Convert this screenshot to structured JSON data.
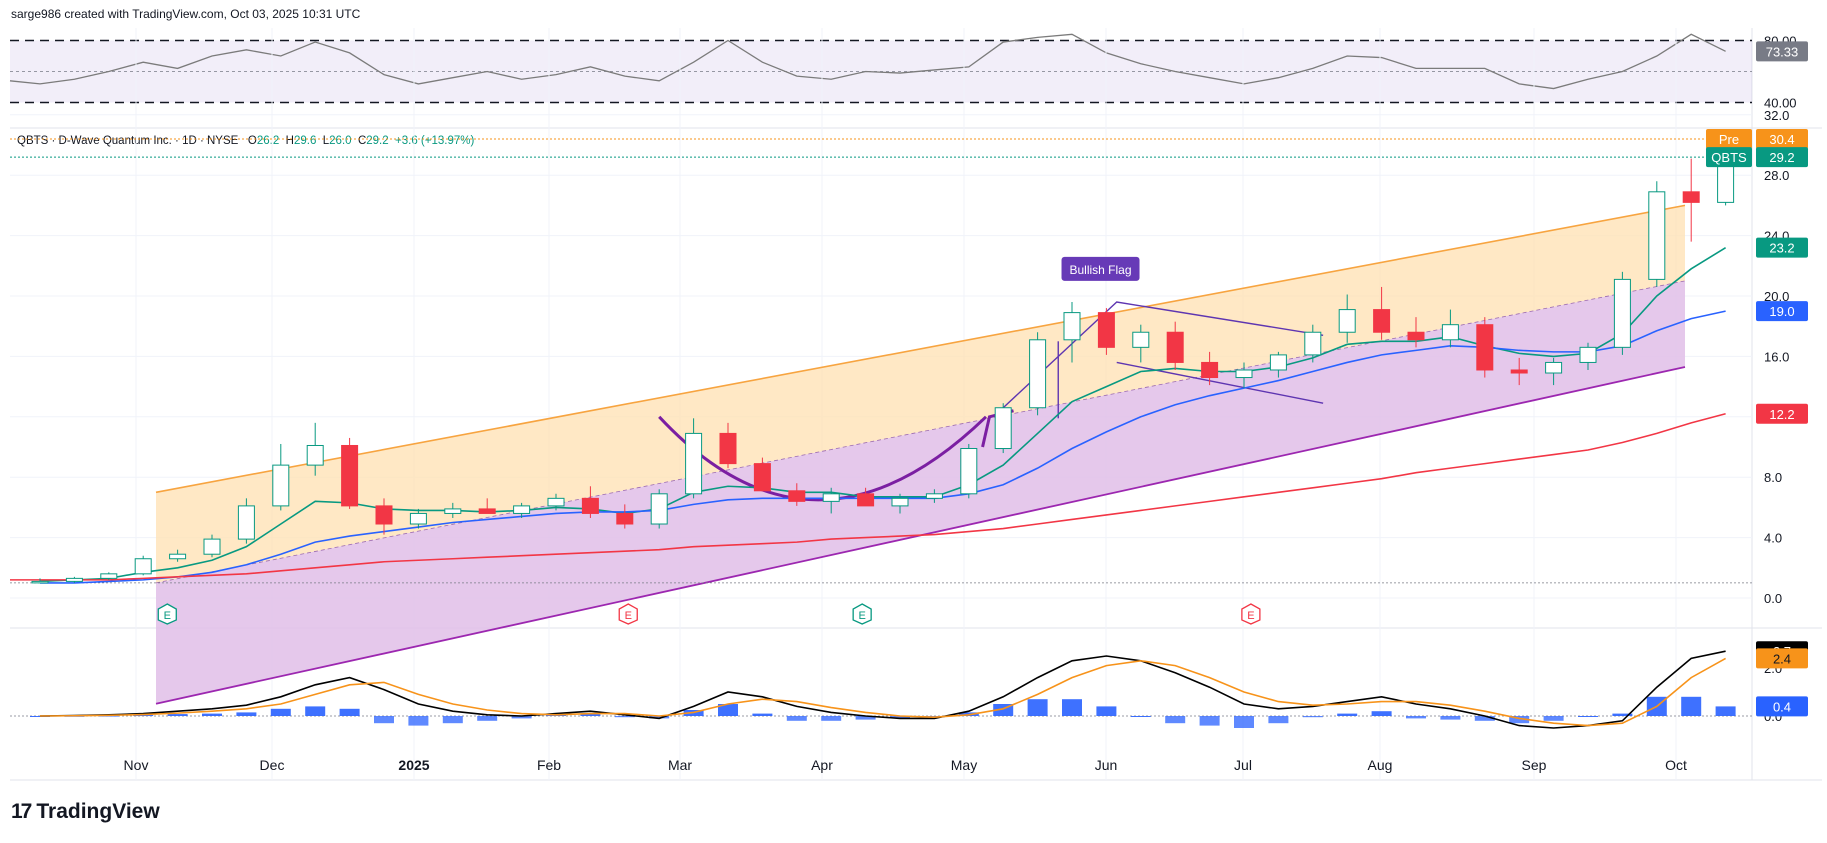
{
  "header": {
    "credit": "sarge986 created with TradingView.com, Oct 03, 2025 10:31 UTC"
  },
  "legend": {
    "symbol": "QBTS · D-Wave Quantum Inc. · 1D · NYSE",
    "open_label": "O",
    "open": "26.2",
    "high_label": "H",
    "high": "29.6",
    "low_label": "L",
    "low": "26.0",
    "close_label": "C",
    "close": "29.2",
    "change": "+3.6 (+13.97%)"
  },
  "brand": {
    "name": "TradingView",
    "mark": "17"
  },
  "colors": {
    "up": "#089981",
    "down": "#f23645",
    "channel_upper": "#f7a440",
    "channel_lower": "#9c27b0",
    "ema_fast": "#089981",
    "ema_mid": "#2962ff",
    "ema_slow": "#f23645",
    "macd": "#000000",
    "signal": "#f7931a",
    "hist": "#2962ff",
    "rsi_line": "#7b7b7b"
  },
  "chart_data": [
    {
      "type": "line",
      "title": "RSI",
      "y_ticks": [
        "80.00",
        "40.00"
      ],
      "overbought": 80,
      "oversold": 40,
      "last_value_label": "73.33",
      "x": [
        "Oct 25",
        "Nov 1",
        "Nov 8",
        "Nov 15",
        "Nov 22",
        "Nov 29",
        "Dec 6",
        "Dec 13",
        "Dec 20",
        "Dec 27",
        "Jan 3",
        "Jan 10",
        "Jan 17",
        "Jan 24",
        "Jan 31",
        "Feb 7",
        "Feb 14",
        "Feb 21",
        "Feb 28",
        "Mar 7",
        "Mar 14",
        "Mar 21",
        "Mar 28",
        "Apr 4",
        "Apr 11",
        "Apr 18",
        "Apr 25",
        "May 2",
        "May 9",
        "May 16",
        "May 23",
        "May 30",
        "Jun 6",
        "Jun 13",
        "Jun 20",
        "Jun 27",
        "Jul 4",
        "Jul 11",
        "Jul 18",
        "Jul 25",
        "Aug 1",
        "Aug 8",
        "Aug 15",
        "Aug 22",
        "Aug 29",
        "Sep 5",
        "Sep 12",
        "Sep 19",
        "Sep 26",
        "Oct 3"
      ],
      "values": [
        52,
        55,
        60,
        66,
        62,
        70,
        74,
        70,
        79,
        72,
        58,
        52,
        56,
        60,
        55,
        58,
        63,
        57,
        54,
        66,
        80,
        66,
        57,
        55,
        60,
        59,
        61,
        63,
        79,
        82,
        84,
        72,
        65,
        60,
        56,
        52,
        56,
        62,
        70,
        69,
        62,
        62,
        62,
        52,
        49,
        55,
        60,
        70,
        84,
        73
      ]
    },
    {
      "type": "scatter",
      "subtype": "candlestick",
      "title": "QBTS · D-Wave Quantum Inc. · 1D · NYSE",
      "y_ticks": [
        "0.0",
        "4.0",
        "8.0",
        "12.0",
        "16.0",
        "20.0",
        "24.0",
        "28.0",
        "32.0"
      ],
      "x_ticks": [
        "Nov",
        "Dec",
        "2025",
        "Feb",
        "Mar",
        "Apr",
        "May",
        "Jun",
        "Jul",
        "Aug",
        "Sep",
        "Oct"
      ],
      "ylim": [
        0,
        32
      ],
      "x": [
        "Oct 25",
        "Nov 1",
        "Nov 8",
        "Nov 15",
        "Nov 22",
        "Nov 29",
        "Dec 6",
        "Dec 13",
        "Dec 20",
        "Dec 27",
        "Jan 3",
        "Jan 10",
        "Jan 17",
        "Jan 24",
        "Jan 31",
        "Feb 7",
        "Feb 14",
        "Feb 21",
        "Feb 28",
        "Mar 7",
        "Mar 14",
        "Mar 21",
        "Mar 28",
        "Apr 4",
        "Apr 11",
        "Apr 18",
        "Apr 25",
        "May 2",
        "May 9",
        "May 16",
        "May 23",
        "May 30",
        "Jun 6",
        "Jun 13",
        "Jun 20",
        "Jun 27",
        "Jul 4",
        "Jul 11",
        "Jul 18",
        "Jul 25",
        "Aug 1",
        "Aug 8",
        "Aug 15",
        "Aug 22",
        "Aug 29",
        "Sep 5",
        "Sep 12",
        "Sep 19",
        "Sep 26",
        "Oct 3"
      ],
      "open": [
        1.1,
        1.1,
        1.3,
        1.6,
        2.6,
        2.9,
        3.9,
        6.1,
        8.8,
        10.1,
        6.1,
        4.9,
        5.6,
        5.9,
        5.6,
        6.1,
        6.6,
        5.6,
        4.9,
        6.9,
        10.9,
        8.9,
        7.1,
        6.4,
        6.9,
        6.1,
        6.6,
        6.9,
        9.9,
        12.6,
        17.1,
        18.9,
        16.6,
        17.6,
        15.6,
        14.6,
        15.1,
        16.1,
        17.6,
        19.1,
        17.6,
        17.1,
        18.1,
        15.1,
        14.9,
        15.6,
        16.6,
        21.1,
        26.9,
        26.2
      ],
      "high": [
        1.3,
        1.4,
        1.7,
        2.8,
        3.2,
        4.2,
        6.6,
        10.2,
        11.6,
        10.6,
        6.6,
        5.9,
        6.3,
        6.6,
        6.3,
        6.9,
        7.4,
        6.2,
        7.2,
        11.9,
        11.6,
        9.3,
        7.6,
        7.3,
        7.3,
        6.9,
        7.2,
        10.2,
        12.9,
        17.6,
        19.6,
        19.2,
        18.1,
        18.3,
        16.3,
        15.6,
        16.3,
        18.1,
        20.1,
        20.6,
        18.6,
        19.1,
        18.6,
        15.9,
        15.9,
        16.9,
        21.6,
        27.6,
        29.1,
        29.6
      ],
      "low": [
        1.0,
        1.0,
        1.2,
        1.5,
        2.4,
        2.7,
        3.6,
        5.8,
        8.1,
        5.9,
        4.2,
        4.6,
        5.3,
        5.6,
        5.3,
        5.8,
        5.3,
        4.6,
        4.6,
        6.6,
        8.6,
        7.1,
        6.1,
        5.6,
        6.1,
        5.6,
        6.3,
        6.6,
        9.6,
        12.1,
        15.6,
        16.1,
        15.6,
        15.1,
        14.1,
        13.9,
        14.6,
        15.6,
        16.9,
        17.1,
        16.6,
        16.6,
        14.6,
        14.1,
        14.1,
        15.1,
        16.1,
        20.6,
        23.6,
        26.0
      ],
      "close": [
        1.1,
        1.3,
        1.6,
        2.6,
        2.9,
        3.9,
        6.1,
        8.8,
        10.1,
        6.1,
        4.9,
        5.6,
        5.9,
        5.6,
        6.1,
        6.6,
        5.6,
        4.9,
        6.9,
        10.9,
        8.9,
        7.1,
        6.4,
        6.9,
        6.1,
        6.6,
        6.9,
        9.9,
        12.6,
        17.1,
        18.9,
        16.6,
        17.6,
        15.6,
        14.6,
        15.1,
        16.1,
        17.6,
        19.1,
        17.6,
        17.1,
        18.1,
        15.1,
        14.9,
        15.6,
        16.6,
        21.1,
        26.9,
        26.2,
        29.2
      ],
      "series": [
        {
          "name": "",
          "role": "ema_fast",
          "values": [
            1.1,
            1.2,
            1.3,
            1.7,
            2.0,
            2.5,
            3.4,
            4.9,
            6.4,
            6.3,
            5.9,
            5.8,
            5.8,
            5.7,
            5.8,
            6.0,
            5.9,
            5.6,
            5.9,
            7.0,
            7.4,
            7.3,
            7.0,
            7.0,
            6.7,
            6.7,
            6.7,
            7.5,
            8.8,
            10.9,
            13.0,
            14.0,
            15.0,
            15.2,
            15.0,
            15.0,
            15.3,
            15.9,
            16.8,
            17.0,
            17.0,
            17.3,
            16.7,
            16.2,
            16.0,
            16.2,
            17.5,
            20.0,
            21.8,
            23.2
          ]
        },
        {
          "name": "",
          "role": "ema_mid",
          "values": [
            1.0,
            1.0,
            1.1,
            1.2,
            1.4,
            1.7,
            2.2,
            2.9,
            3.7,
            4.1,
            4.4,
            4.7,
            5.0,
            5.2,
            5.4,
            5.6,
            5.7,
            5.7,
            5.8,
            6.2,
            6.5,
            6.6,
            6.6,
            6.6,
            6.6,
            6.6,
            6.6,
            6.9,
            7.5,
            8.6,
            9.9,
            11.0,
            12.0,
            12.8,
            13.4,
            13.9,
            14.4,
            15.0,
            15.6,
            16.1,
            16.4,
            16.7,
            16.6,
            16.4,
            16.3,
            16.3,
            16.7,
            17.7,
            18.5,
            19.0
          ]
        },
        {
          "name": "",
          "role": "ema_slow",
          "values": [
            1.2,
            1.2,
            1.2,
            1.3,
            1.4,
            1.5,
            1.6,
            1.8,
            2.0,
            2.2,
            2.4,
            2.5,
            2.6,
            2.7,
            2.8,
            2.9,
            3.0,
            3.1,
            3.2,
            3.4,
            3.5,
            3.6,
            3.7,
            3.9,
            4.0,
            4.1,
            4.2,
            4.4,
            4.6,
            4.9,
            5.2,
            5.5,
            5.8,
            6.1,
            6.4,
            6.7,
            7.0,
            7.3,
            7.6,
            7.9,
            8.3,
            8.6,
            8.9,
            9.2,
            9.5,
            9.8,
            10.3,
            10.9,
            11.6,
            12.2
          ]
        }
      ],
      "channel": {
        "upper": [
          [
            "Nov 1",
            7.0
          ],
          [
            "Oct 3",
            26.0
          ]
        ],
        "mid": [
          [
            "Nov 1",
            1.0
          ],
          [
            "Oct 3",
            21.0
          ]
        ],
        "lower": [
          [
            "Nov 1",
            -7.0
          ],
          [
            "Oct 3",
            15.3
          ]
        ]
      },
      "annotations": [
        {
          "text": "Bullish Flag"
        }
      ],
      "earnings_markers": [
        "E",
        "E",
        "E",
        "E"
      ],
      "price_labels": {
        "pre_tag": "Pre",
        "pre": "30.4",
        "sym_tag": "QBTS",
        "last": "29.2",
        "ema_fast": "23.2",
        "ema_mid": "19.0",
        "ema_slow": "12.2"
      }
    },
    {
      "type": "bar",
      "title": "MACD",
      "y_ticks": [
        "0.0",
        "2.0"
      ],
      "ylim": [
        -1.1,
        3.0
      ],
      "x": [
        "Oct 25",
        "Nov 1",
        "Nov 8",
        "Nov 15",
        "Nov 22",
        "Nov 29",
        "Dec 6",
        "Dec 13",
        "Dec 20",
        "Dec 27",
        "Jan 3",
        "Jan 10",
        "Jan 17",
        "Jan 24",
        "Jan 31",
        "Feb 7",
        "Feb 14",
        "Feb 21",
        "Feb 28",
        "Mar 7",
        "Mar 14",
        "Mar 21",
        "Mar 28",
        "Apr 4",
        "Apr 11",
        "Apr 18",
        "Apr 25",
        "May 2",
        "May 9",
        "May 16",
        "May 23",
        "May 30",
        "Jun 6",
        "Jun 13",
        "Jun 20",
        "Jun 27",
        "Jul 4",
        "Jul 11",
        "Jul 18",
        "Jul 25",
        "Aug 1",
        "Aug 8",
        "Aug 15",
        "Aug 22",
        "Aug 29",
        "Sep 5",
        "Sep 12",
        "Sep 19",
        "Sep 26",
        "Oct 3"
      ],
      "series": [
        {
          "name": "",
          "role": "macd",
          "values": [
            0.0,
            0.02,
            0.05,
            0.1,
            0.2,
            0.3,
            0.45,
            0.8,
            1.3,
            1.6,
            1.1,
            0.5,
            0.2,
            0.05,
            0.0,
            0.1,
            0.2,
            0.05,
            -0.1,
            0.4,
            1.0,
            0.8,
            0.4,
            0.15,
            0.0,
            -0.1,
            -0.1,
            0.2,
            0.8,
            1.6,
            2.3,
            2.5,
            2.3,
            1.8,
            1.2,
            0.5,
            0.3,
            0.4,
            0.6,
            0.8,
            0.5,
            0.3,
            0.0,
            -0.4,
            -0.5,
            -0.4,
            -0.2,
            1.2,
            2.4,
            2.7
          ]
        },
        {
          "name": "",
          "role": "signal",
          "values": [
            0.0,
            0.01,
            0.03,
            0.06,
            0.12,
            0.2,
            0.3,
            0.5,
            0.9,
            1.3,
            1.4,
            0.9,
            0.5,
            0.25,
            0.1,
            0.05,
            0.1,
            0.1,
            0.0,
            0.15,
            0.5,
            0.7,
            0.6,
            0.35,
            0.15,
            0.0,
            -0.05,
            0.05,
            0.3,
            0.9,
            1.6,
            2.1,
            2.3,
            2.1,
            1.6,
            1.0,
            0.6,
            0.45,
            0.5,
            0.6,
            0.6,
            0.45,
            0.2,
            -0.1,
            -0.3,
            -0.4,
            -0.3,
            0.4,
            1.6,
            2.4
          ]
        },
        {
          "name": "",
          "role": "histogram",
          "values": [
            0.0,
            0.01,
            0.02,
            0.04,
            0.08,
            0.1,
            0.15,
            0.3,
            0.4,
            0.3,
            -0.3,
            -0.4,
            -0.3,
            -0.2,
            -0.1,
            0.05,
            0.1,
            -0.05,
            -0.1,
            0.25,
            0.5,
            0.1,
            -0.2,
            -0.2,
            -0.15,
            -0.1,
            -0.05,
            0.15,
            0.5,
            0.7,
            0.7,
            0.4,
            0.0,
            -0.3,
            -0.4,
            -0.5,
            -0.3,
            -0.05,
            0.1,
            0.2,
            -0.1,
            -0.15,
            -0.2,
            -0.3,
            -0.2,
            0.0,
            0.1,
            0.8,
            0.8,
            0.4
          ]
        }
      ],
      "last_value_labels": [
        "2.7",
        "2.4",
        "0.4"
      ]
    }
  ]
}
